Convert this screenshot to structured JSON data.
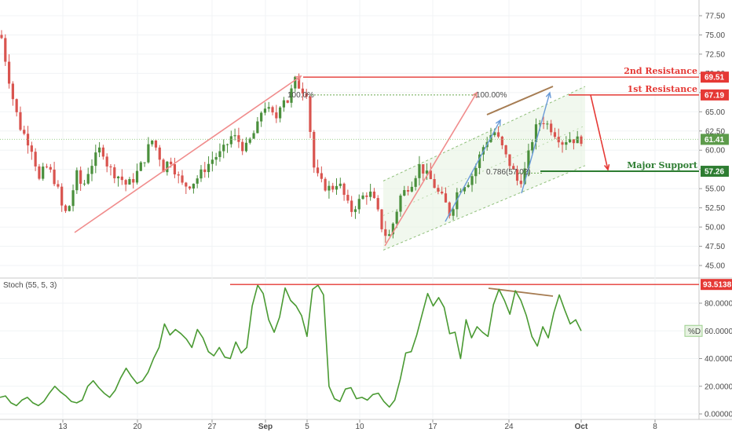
{
  "chart_data": [
    {
      "type": "candlestick",
      "title": "",
      "ylim": [
        43.5,
        79
      ],
      "price_ticks": [
        "77.50",
        "75.00",
        "72.50",
        "70.00",
        "67.50",
        "65.00",
        "62.50",
        "60.00",
        "57.50",
        "55.00",
        "52.50",
        "50.00",
        "47.50",
        "45.00"
      ],
      "price_tick_values": [
        77.5,
        75,
        72.5,
        70,
        67.5,
        65,
        62.5,
        60,
        57.5,
        55,
        52.5,
        50,
        47.5,
        45
      ],
      "date_labels": [
        "13",
        "20",
        "27",
        "Sep",
        "5",
        "10",
        "17",
        "24",
        "Oct",
        "8"
      ],
      "levels": [
        {
          "name": "2nd Resistance",
          "value": 69.51,
          "tag": "69.51",
          "color": "#e53935"
        },
        {
          "name": "1st Resistance",
          "value": 67.19,
          "tag": "67.19",
          "color": "#e53935"
        },
        {
          "name": "Major Support",
          "value": 57.26,
          "tag": "57.26",
          "color": "#2e7d32"
        }
      ],
      "last_price": {
        "value": 61.41,
        "tag": "61.41",
        "color": "#5d9b4b"
      },
      "fib_labels": [
        "100.0%",
        "100.00%",
        "0.786(57.02)"
      ],
      "up_color": "#4a8f3c",
      "down_color": "#d9544f",
      "candles_close_path": [
        74.6,
        70,
        66,
        63,
        61.5,
        60,
        56,
        58,
        57,
        55,
        51.5,
        53,
        57,
        55,
        57.5,
        59,
        60.5,
        58,
        57,
        56.5,
        55.5,
        56,
        57.5,
        59,
        61.5,
        60,
        57.5,
        59,
        57,
        55.5,
        55.4,
        56,
        57,
        58,
        59,
        59.5,
        60.5,
        62,
        61.2,
        60,
        61.5,
        63,
        66,
        65,
        64,
        67,
        66.3,
        69.2,
        68,
        67.5,
        58,
        56,
        55.2,
        55,
        56,
        54,
        52,
        53,
        54,
        54.6,
        53,
        50,
        48.4,
        51,
        54,
        55,
        56,
        58,
        57,
        56,
        54.5,
        53.5,
        51.5,
        54.4,
        55.5,
        56,
        57.5,
        60,
        61.5,
        62.5,
        61,
        59,
        57.5,
        55.5,
        57.5,
        61,
        63.5,
        63.8,
        63,
        62,
        61,
        61.6,
        61.3,
        61.41
      ],
      "candles_count": 155
    },
    {
      "type": "line",
      "title": "Stoch (55, 5, 3)",
      "ylim": [
        0,
        100
      ],
      "ticks": [
        "80.000000",
        "60.000000",
        "40.000000",
        "20.000000",
        "0.000000"
      ],
      "tick_values": [
        80,
        60,
        40,
        20,
        0
      ],
      "level": {
        "value": 93.5138,
        "tag": "93.5138",
        "color": "#e53935"
      },
      "series": [
        {
          "name": "%D",
          "color": "#4a9a33",
          "values": [
            12,
            13,
            8,
            6,
            10,
            12,
            8,
            6,
            9,
            15,
            20,
            16,
            13,
            9,
            8,
            10,
            20,
            24,
            19,
            15,
            12,
            17,
            26,
            33,
            27,
            22,
            24,
            30,
            40,
            48,
            65,
            57,
            61,
            58,
            54,
            48,
            61,
            55,
            45,
            42,
            48,
            41,
            40,
            52,
            44,
            48,
            78,
            93,
            87,
            68,
            59,
            70,
            91,
            82,
            78,
            71,
            56,
            90,
            93,
            86,
            20,
            11,
            9,
            18,
            19,
            11,
            12,
            10,
            14,
            15,
            9,
            5,
            10,
            25,
            44,
            45,
            57,
            72,
            87,
            78,
            84,
            77,
            58,
            59,
            40,
            68,
            55,
            63,
            59,
            56,
            79,
            90,
            82,
            72,
            89,
            82,
            71,
            56,
            49,
            63,
            55,
            73,
            86,
            75,
            65,
            68,
            60
          ]
        }
      ],
      "legend_tag": "%D"
    }
  ]
}
